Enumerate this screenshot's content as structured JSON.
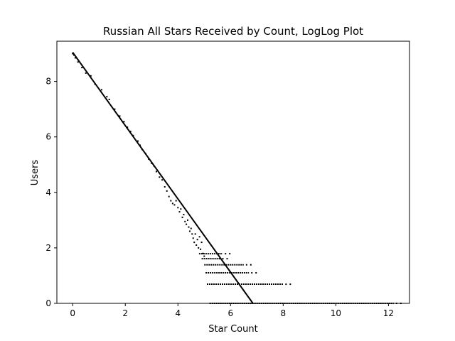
{
  "chart_data": {
    "type": "scatter",
    "title": "Russian All Stars Received by Count, LogLog Plot",
    "xlabel": "Star Count",
    "ylabel": "Users",
    "xlim": [
      -0.6,
      12.8
    ],
    "ylim": [
      0,
      9.45
    ],
    "xticks": [
      0,
      2,
      4,
      6,
      8,
      10,
      12
    ],
    "xtick_labels": [
      "0",
      "2",
      "4",
      "6",
      "8",
      "10",
      "12"
    ],
    "yticks": [
      0,
      2,
      4,
      6,
      8
    ],
    "ytick_labels": [
      "0",
      "2",
      "4",
      "6",
      "8"
    ],
    "grid": false,
    "legend": "none",
    "point_color": "#000000",
    "series": [
      {
        "kind": "points",
        "x": [
          0.0,
          0.05,
          0.1,
          0.2,
          0.35,
          0.5,
          0.69,
          0.85,
          1.1,
          1.3,
          1.39,
          1.6,
          1.79,
          1.95,
          2.08,
          2.2,
          2.3,
          2.48,
          2.56,
          2.64,
          2.77,
          2.89,
          3.0,
          3.09,
          3.18,
          3.3,
          3.4,
          3.5,
          3.58,
          3.66,
          3.73,
          3.8,
          3.87,
          3.93,
          4.0,
          4.06,
          4.11,
          4.17,
          4.22,
          4.27,
          4.32,
          4.37,
          4.41,
          4.45,
          4.5,
          4.54,
          4.58,
          4.62,
          4.66,
          4.7,
          4.74,
          4.78,
          4.82,
          4.86,
          4.9,
          4.95,
          5.0
        ],
        "y": [
          9.0,
          8.95,
          8.85,
          8.7,
          8.5,
          8.3,
          8.2,
          7.9,
          7.7,
          7.45,
          7.35,
          7.0,
          6.75,
          6.55,
          6.35,
          6.2,
          6.05,
          5.85,
          5.7,
          5.55,
          5.4,
          5.2,
          5.05,
          4.95,
          4.75,
          4.55,
          4.45,
          4.2,
          4.05,
          3.85,
          3.7,
          3.6,
          3.55,
          3.7,
          3.45,
          3.3,
          3.4,
          3.1,
          3.2,
          2.95,
          2.85,
          3.0,
          2.75,
          2.6,
          2.7,
          2.5,
          2.35,
          2.2,
          2.5,
          2.1,
          2.3,
          2.0,
          2.4,
          1.95,
          2.2,
          1.8,
          1.7
        ]
      },
      {
        "kind": "level-run",
        "levels": [
          {
            "y": 1.79,
            "x_from": 4.8,
            "x_to": 5.7
          },
          {
            "y": 1.61,
            "x_from": 4.9,
            "x_to": 5.6
          },
          {
            "y": 1.39,
            "x_from": 5.0,
            "x_to": 6.5
          },
          {
            "y": 1.1,
            "x_from": 5.05,
            "x_to": 6.7
          },
          {
            "y": 0.69,
            "x_from": 5.1,
            "x_to": 8.0
          },
          {
            "y": 0.0,
            "x_from": 5.2,
            "x_to": 12.2
          }
        ]
      },
      {
        "kind": "fit-line",
        "x": [
          0.0,
          6.85
        ],
        "y": [
          9.05,
          0.0
        ]
      }
    ]
  }
}
